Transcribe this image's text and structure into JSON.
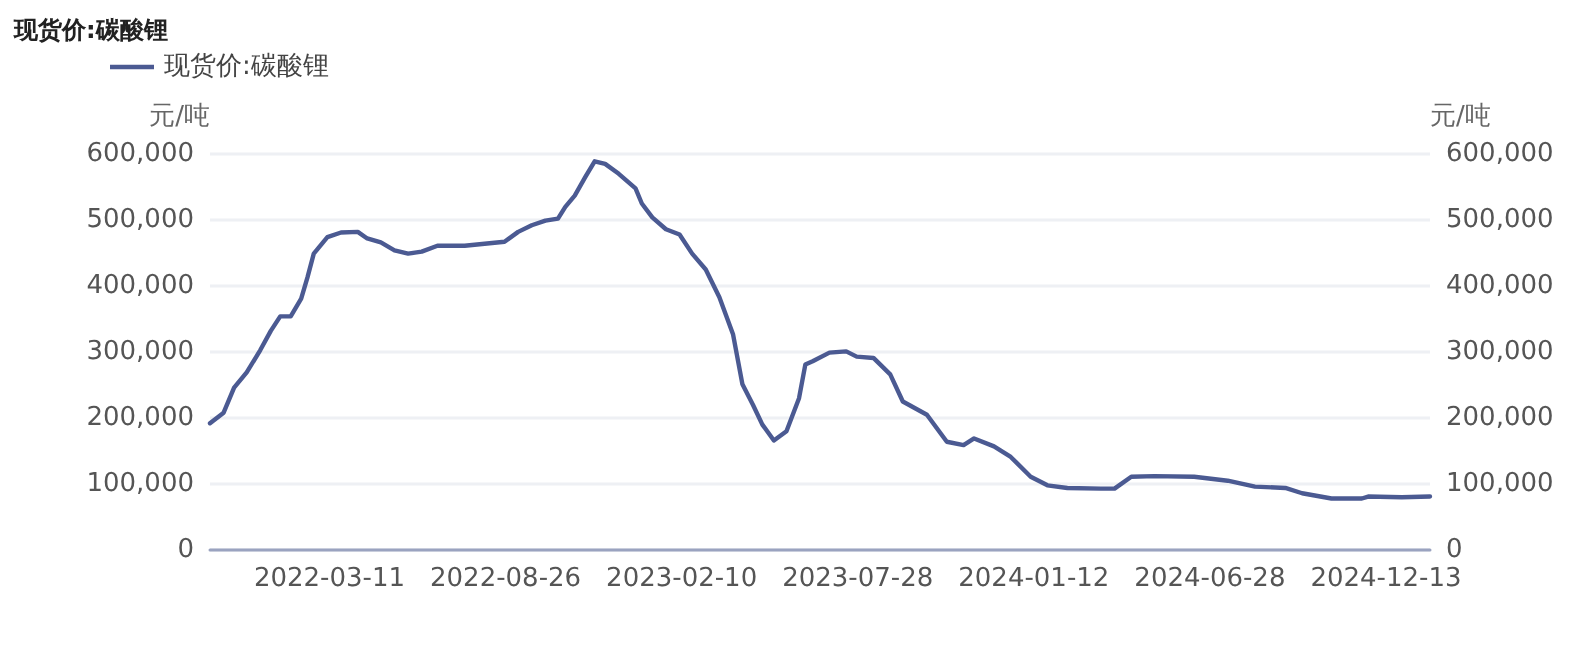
{
  "chart_data": {
    "type": "line",
    "title": "现货价:碳酸锂",
    "ylabel": "元/吨",
    "y2label": "元/吨",
    "x": [
      "2021-11-17",
      "2021-11-30",
      "2021-12-10",
      "2021-12-22",
      "2022-01-04",
      "2022-01-14",
      "2022-01-23",
      "2022-02-02",
      "2022-02-12",
      "2022-02-18",
      "2022-02-24",
      "2022-03-09",
      "2022-03-22",
      "2022-04-07",
      "2022-04-16",
      "2022-04-29",
      "2022-05-12",
      "2022-05-25",
      "2022-06-07",
      "2022-06-22",
      "2022-07-18",
      "2022-08-25",
      "2022-09-07",
      "2022-09-20",
      "2022-10-03",
      "2022-10-15",
      "2022-10-22",
      "2022-10-31",
      "2022-11-10",
      "2022-11-19",
      "2022-11-29",
      "2022-12-12",
      "2022-12-28",
      "2023-01-03",
      "2023-01-13",
      "2023-01-26",
      "2023-02-08",
      "2023-02-20",
      "2023-03-05",
      "2023-03-18",
      "2023-03-31",
      "2023-04-09",
      "2023-04-19",
      "2023-04-28",
      "2023-05-09",
      "2023-05-21",
      "2023-06-02",
      "2023-06-08",
      "2023-06-15",
      "2023-07-01",
      "2023-07-17",
      "2023-07-27",
      "2023-08-12",
      "2023-08-28",
      "2023-09-09",
      "2023-10-02",
      "2023-10-21",
      "2023-11-06",
      "2023-11-16",
      "2023-12-05",
      "2023-12-21",
      "2024-01-09",
      "2024-01-25",
      "2024-02-13",
      "2024-03-16",
      "2024-03-29",
      "2024-04-14",
      "2024-05-06",
      "2024-06-13",
      "2024-07-15",
      "2024-08-10",
      "2024-09-08",
      "2024-09-24",
      "2024-10-22",
      "2024-11-20",
      "2024-11-26",
      "2024-12-28",
      "2025-01-24"
    ],
    "series": [
      {
        "name": "现货价:碳酸锂",
        "color": "#4b5a92",
        "values": [
          192000,
          208000,
          246000,
          269000,
          303000,
          332000,
          354000,
          354000,
          381000,
          413000,
          449000,
          474000,
          481000,
          482000,
          472000,
          466000,
          454000,
          449000,
          452000,
          461000,
          461000,
          467000,
          482000,
          492000,
          499000,
          502000,
          520000,
          537000,
          565000,
          589000,
          585000,
          570000,
          548000,
          525000,
          504000,
          486000,
          478000,
          449000,
          425000,
          383000,
          327000,
          251000,
          220000,
          190000,
          166000,
          180000,
          230000,
          281000,
          286000,
          299000,
          301000,
          293000,
          291000,
          266000,
          225000,
          205000,
          164000,
          159000,
          169000,
          157000,
          141000,
          111000,
          98000,
          94000,
          93000,
          93000,
          111000,
          112000,
          111000,
          105000,
          96000,
          94000,
          86000,
          78000,
          78000,
          81000,
          80000,
          81000
        ]
      }
    ],
    "xlim": [
      "2021-11-17",
      "2025-01-24"
    ],
    "xticks": [
      "2022-03-11",
      "2022-08-26",
      "2023-02-10",
      "2023-07-28",
      "2024-01-12",
      "2024-06-28",
      "2024-12-13"
    ],
    "ylim": [
      0,
      600000
    ],
    "yticks": [
      {
        "value": 0,
        "label": "0"
      },
      {
        "value": 100000,
        "label": "100,000"
      },
      {
        "value": 200000,
        "label": "200,000"
      },
      {
        "value": 300000,
        "label": "300,000"
      },
      {
        "value": 400000,
        "label": "400,000"
      },
      {
        "value": 500000,
        "label": "500,000"
      },
      {
        "value": 600000,
        "label": "600,000"
      }
    ],
    "y2lim": [
      0,
      600000
    ],
    "y2ticks": [
      {
        "value": 0,
        "label": "0"
      },
      {
        "value": 100000,
        "label": "100,000"
      },
      {
        "value": 200000,
        "label": "200,000"
      },
      {
        "value": 300000,
        "label": "300,000"
      },
      {
        "value": 400000,
        "label": "400,000"
      },
      {
        "value": 500000,
        "label": "500,000"
      },
      {
        "value": 600000,
        "label": "600,000"
      }
    ],
    "grid": "y",
    "legend": "top left",
    "marker": "none",
    "line_style": "solid"
  }
}
